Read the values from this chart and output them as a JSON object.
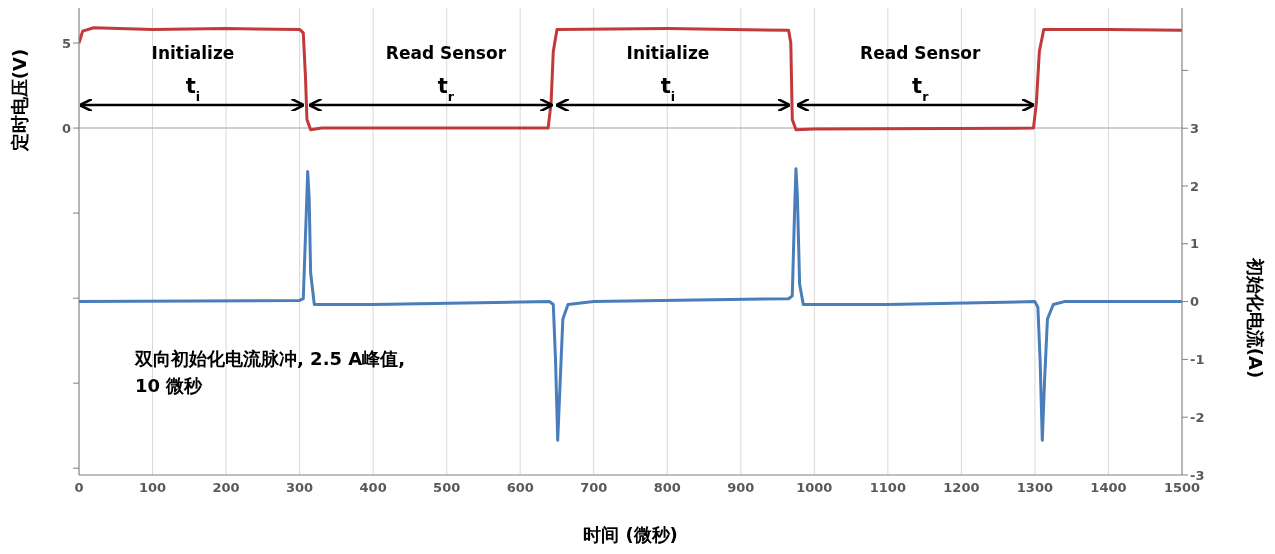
{
  "chart_data": {
    "type": "line",
    "xlabel": "时间 (微秒)",
    "ylabel": "定时电压(V)",
    "y2label": "初始化电流(A)",
    "xlim": [
      0,
      1500
    ],
    "xticks": [
      0,
      100,
      200,
      300,
      400,
      500,
      600,
      700,
      800,
      900,
      1000,
      1100,
      1200,
      1300,
      1400,
      1500
    ],
    "ylim": [
      -20.4,
      7.06
    ],
    "yticks": [
      {
        "value": -20,
        "label": null
      },
      {
        "value": -15,
        "label": null
      },
      {
        "value": -10,
        "label": null
      },
      {
        "value": -5,
        "label": null
      },
      0,
      5
    ],
    "y2lim": [
      -3,
      5.08
    ],
    "y2ticks": [
      -3,
      -2,
      -1,
      0,
      1,
      2,
      3,
      {
        "value": 4,
        "label": null
      }
    ],
    "grid": "x",
    "marker": "none",
    "line_style": "solid",
    "ref_lines": [
      {
        "axis": "y",
        "value": 0,
        "color": "#bfbfbf"
      }
    ],
    "series": [
      {
        "color": "#c0393b",
        "x": [
          0,
          5,
          20,
          100,
          200,
          300,
          305,
          308,
          310,
          315,
          330,
          500,
          638,
          642,
          645,
          650,
          800,
          965,
          968,
          970,
          975,
          1000,
          1298,
          1302,
          1306,
          1312,
          1400,
          1500
        ],
        "values": [
          5.0,
          5.7,
          5.9,
          5.8,
          5.85,
          5.8,
          5.6,
          3,
          0.5,
          -0.1,
          0,
          0,
          0,
          1.5,
          4.5,
          5.8,
          5.85,
          5.75,
          5,
          0.5,
          -0.1,
          -0.05,
          0,
          1.5,
          4.5,
          5.8,
          5.8,
          5.75
        ]
      },
      {
        "color": "#4a7ebb",
        "axis": "y2",
        "x": [
          0,
          300,
          305,
          309,
          311,
          313,
          315,
          320,
          400,
          640,
          645,
          648,
          651,
          654,
          658,
          665,
          700,
          965,
          970,
          973,
          975,
          977,
          980,
          985,
          1100,
          1300,
          1304,
          1307,
          1310,
          1313,
          1317,
          1325,
          1340,
          1500
        ],
        "values": [
          0,
          0.02,
          0.05,
          1.5,
          2.25,
          1.8,
          0.5,
          -0.05,
          -0.05,
          0,
          -0.05,
          -1,
          -2.4,
          -1.5,
          -0.3,
          -0.05,
          0,
          0.05,
          0.1,
          1.5,
          2.3,
          1.8,
          0.3,
          -0.05,
          -0.05,
          0,
          -0.1,
          -1,
          -2.4,
          -1.4,
          -0.3,
          -0.05,
          0,
          0
        ]
      }
    ],
    "annotations": [
      "Initialize",
      "t$_{i}$",
      "Read Sensor",
      "t$_{r}$",
      "Initialize",
      "t$_{i}$",
      "Read Sensor",
      "t$_{r}$",
      "双向初始化电流脉冲, 2.5 A峰值, 10 微秒"
    ]
  }
}
